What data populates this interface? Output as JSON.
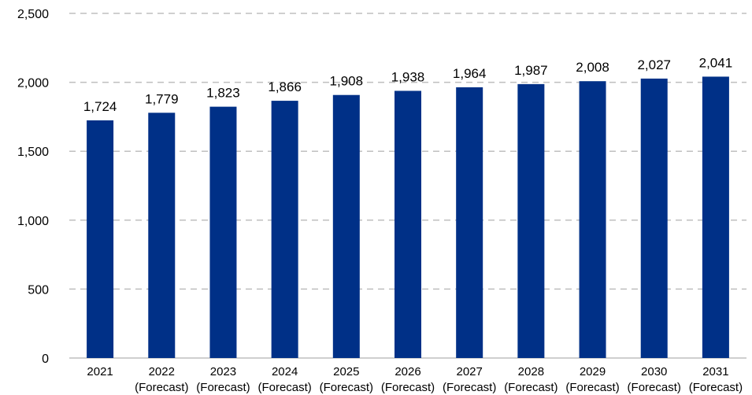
{
  "chart_data": {
    "type": "bar",
    "categories": [
      {
        "year": "2021",
        "note": ""
      },
      {
        "year": "2022",
        "note": "(Forecast)"
      },
      {
        "year": "2023",
        "note": "(Forecast)"
      },
      {
        "year": "2024",
        "note": "(Forecast)"
      },
      {
        "year": "2025",
        "note": "(Forecast)"
      },
      {
        "year": "2026",
        "note": "(Forecast)"
      },
      {
        "year": "2027",
        "note": "(Forecast)"
      },
      {
        "year": "2028",
        "note": "(Forecast)"
      },
      {
        "year": "2029",
        "note": "(Forecast)"
      },
      {
        "year": "2030",
        "note": "(Forecast)"
      },
      {
        "year": "2031",
        "note": "(Forecast)"
      }
    ],
    "values": [
      1724,
      1779,
      1823,
      1866,
      1908,
      1938,
      1964,
      1987,
      2008,
      2027,
      2041
    ],
    "value_labels": [
      "1,724",
      "1,779",
      "1,823",
      "1,866",
      "1,908",
      "1,938",
      "1,964",
      "1,987",
      "2,008",
      "2,027",
      "2,041"
    ],
    "ylim": [
      0,
      2500
    ],
    "yticks": [
      0,
      500,
      1000,
      1500,
      2000,
      2500
    ],
    "ytick_labels": [
      "0",
      "500",
      "1,000",
      "1,500",
      "2,000",
      "2,500"
    ],
    "title": "",
    "xlabel": "",
    "ylabel": "",
    "grid": true,
    "legend": "none",
    "bar_color": "#003087",
    "grid_color": "#bfbfbf"
  }
}
